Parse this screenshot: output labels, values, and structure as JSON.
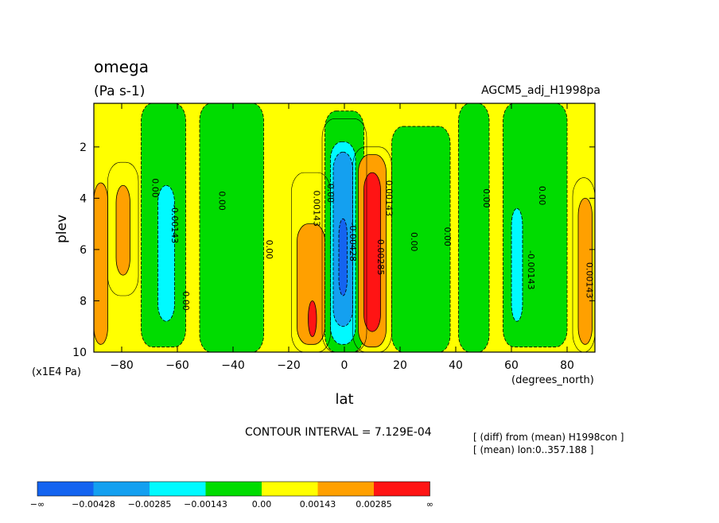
{
  "chart_data": {
    "type": "contour",
    "title": "omega",
    "units": "(Pa s-1)",
    "dataset": "AGCM5_adj_H1998pa",
    "xlabel": "lat",
    "xunits": "(degrees_north)",
    "ylabel": "plev",
    "yunits": "(x1E4 Pa)",
    "xlim": [
      -90,
      90
    ],
    "ylim": [
      10,
      0.3
    ],
    "x_ticks": [
      "-80",
      "-60",
      "-40",
      "-20",
      "0",
      "20",
      "40",
      "60",
      "80"
    ],
    "x_tick_values": [
      -80,
      -60,
      -40,
      -20,
      0,
      20,
      40,
      60,
      80
    ],
    "y_ticks": [
      "2",
      "4",
      "6",
      "8",
      "10"
    ],
    "y_tick_values": [
      2,
      4,
      6,
      8,
      10
    ],
    "contour_interval_text": "CONTOUR INTERVAL = 7.129E-04",
    "notes": [
      "[ (diff) from (mean) H1998con ]",
      "[ (mean) lon:0..357.188 ]"
    ],
    "colorbar": {
      "labels": [
        "−∞",
        "−0.00428",
        "−0.00285",
        "−0.00143",
        "0.00",
        "0.00143",
        "0.00285",
        "∞"
      ],
      "colors": [
        "#1464f0",
        "#14a0f0",
        "#00faff",
        "#00dc00",
        "#ffff00",
        "#ffa000",
        "#ff1414"
      ]
    },
    "regions": [
      {
        "level": "positive",
        "color": "#ffa000",
        "lat": [
          -90,
          -85
        ],
        "plev": [
          3.4,
          9.7
        ]
      },
      {
        "level": "positive",
        "color": "#ffa000",
        "lat": [
          -82,
          -77
        ],
        "plev": [
          3.5,
          7.0
        ]
      },
      {
        "level": "negative",
        "color": "#00dc00",
        "lat": [
          -73,
          -57
        ],
        "plev": [
          0.3,
          9.8
        ]
      },
      {
        "level": "negative",
        "color": "#00faff",
        "lat": [
          -67,
          -61
        ],
        "plev": [
          3.5,
          8.8
        ]
      },
      {
        "level": "negative",
        "color": "#00dc00",
        "lat": [
          -52,
          -29
        ],
        "plev": [
          0.3,
          10
        ]
      },
      {
        "level": "positive",
        "color": "#ffa000",
        "lat": [
          -17,
          -7
        ],
        "plev": [
          5.0,
          9.7
        ]
      },
      {
        "level": "positive",
        "color": "#ff1414",
        "lat": [
          -13,
          -10
        ],
        "plev": [
          8.0,
          9.4
        ]
      },
      {
        "level": "negative",
        "color": "#00dc00",
        "lat": [
          -7,
          7
        ],
        "plev": [
          0.6,
          10
        ]
      },
      {
        "level": "negative",
        "color": "#00faff",
        "lat": [
          -5,
          4
        ],
        "plev": [
          1.8,
          9.7
        ]
      },
      {
        "level": "negative",
        "color": "#14a0f0",
        "lat": [
          -4,
          3
        ],
        "plev": [
          2.2,
          9.0
        ]
      },
      {
        "level": "negative",
        "color": "#1464f0",
        "lat": [
          -2,
          1
        ],
        "plev": [
          4.8,
          7.8
        ]
      },
      {
        "level": "positive",
        "color": "#ffa000",
        "lat": [
          5,
          15
        ],
        "plev": [
          2.3,
          9.8
        ]
      },
      {
        "level": "positive",
        "color": "#ff1414",
        "lat": [
          7,
          13
        ],
        "plev": [
          3.0,
          9.2
        ]
      },
      {
        "level": "negative",
        "color": "#00dc00",
        "lat": [
          17,
          38
        ],
        "plev": [
          1.2,
          10
        ]
      },
      {
        "level": "negative",
        "color": "#00dc00",
        "lat": [
          41,
          52
        ],
        "plev": [
          0.3,
          10
        ]
      },
      {
        "level": "negative",
        "color": "#00dc00",
        "lat": [
          57,
          80
        ],
        "plev": [
          0.3,
          9.8
        ]
      },
      {
        "level": "negative",
        "color": "#00faff",
        "lat": [
          60,
          64
        ],
        "plev": [
          4.4,
          8.8
        ]
      },
      {
        "level": "positive",
        "color": "#ffa000",
        "lat": [
          84,
          89
        ],
        "plev": [
          4.0,
          9.7
        ]
      }
    ],
    "contour_labels": [
      {
        "text": "0.00",
        "lat": -69,
        "plev": 3.6
      },
      {
        "text": "-0.00143",
        "lat": -62,
        "plev": 5.0
      },
      {
        "text": "0.00",
        "lat": -58,
        "plev": 8.0
      },
      {
        "text": "0.00",
        "lat": -45,
        "plev": 4.1
      },
      {
        "text": "0.00",
        "lat": -28,
        "plev": 6.0
      },
      {
        "text": "0.00143",
        "lat": -11,
        "plev": 4.4
      },
      {
        "text": "0.00",
        "lat": -6,
        "plev": 3.8
      },
      {
        "text": "-0.00428",
        "lat": 2,
        "plev": 5.7
      },
      {
        "text": "0.00143",
        "lat": 15,
        "plev": 4.0
      },
      {
        "text": "0.00285",
        "lat": 12,
        "plev": 6.3
      },
      {
        "text": "0.00",
        "lat": 24,
        "plev": 5.7
      },
      {
        "text": "0.00",
        "lat": 36,
        "plev": 5.5
      },
      {
        "text": "0.00",
        "lat": 50,
        "plev": 4.0
      },
      {
        "text": "0.00",
        "lat": 70,
        "plev": 3.9
      },
      {
        "text": "-0.00143",
        "lat": 66,
        "plev": 6.8
      },
      {
        "text": "0.00143",
        "lat": 87,
        "plev": 7.2
      }
    ]
  }
}
